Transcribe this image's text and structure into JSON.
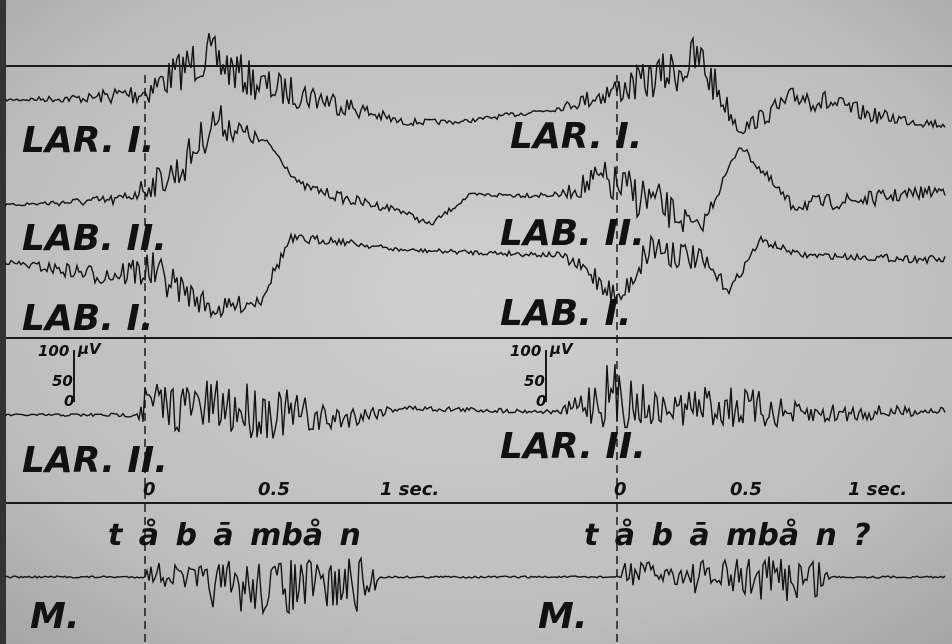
{
  "panels": [
    {
      "channels": [
        "LAR. I.",
        "LAB. II.",
        "LAB. I.",
        "LAR. II."
      ],
      "scale": {
        "max": "100",
        "unit": "μV",
        "mid": "50",
        "zero": "0"
      },
      "time": [
        "0",
        "0.5",
        "1 sec."
      ],
      "transcription": "t å b ā mbå n",
      "mic": "M."
    },
    {
      "channels": [
        "LAR. I.",
        "LAB. II.",
        "LAB. I.",
        "LAR. II."
      ],
      "scale": {
        "max": "100",
        "unit": "μV",
        "mid": "50",
        "zero": "0"
      },
      "time": [
        "0",
        "0.5",
        "1 sec."
      ],
      "transcription": "t å b ā mbå n ?",
      "mic": "M."
    }
  ]
}
